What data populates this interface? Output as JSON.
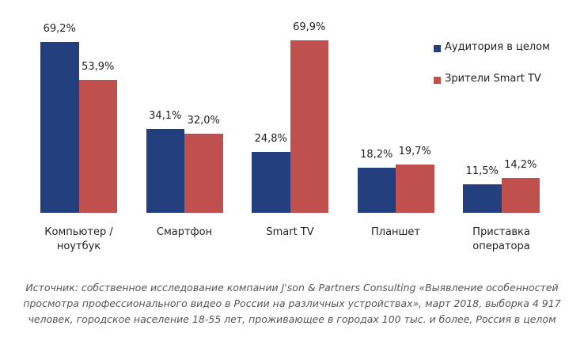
{
  "chart_data": {
    "type": "bar",
    "categories": [
      "Компьютер / ноутбук",
      "Смартфон",
      "Smart TV",
      "Планшет",
      "Приставка оператора"
    ],
    "series": [
      {
        "name": "Аудитория в целом",
        "color": "#243f7d",
        "values": [
          69.2,
          34.1,
          24.8,
          18.2,
          11.5
        ],
        "value_labels": [
          "69,2%",
          "34,1%",
          "24,8%",
          "18,2%",
          "11,5%"
        ]
      },
      {
        "name": "Зрители Smart TV",
        "color": "#c0504d",
        "values": [
          53.9,
          32.0,
          69.9,
          19.7,
          14.2
        ],
        "value_labels": [
          "53,9%",
          "32,0%",
          "69,9%",
          "19,7%",
          "14,2%"
        ]
      }
    ],
    "legend": "right",
    "source": "Источник: собственное исследование компании J'son & Partners Consulting «Выявление особенностей просмотра профессионального видео в России на различных устройствах», март 2018, выборка 4 917 человек, городское население 18-55 лет, проживающее в городах 100 тыс. и более, Россия в целом"
  }
}
